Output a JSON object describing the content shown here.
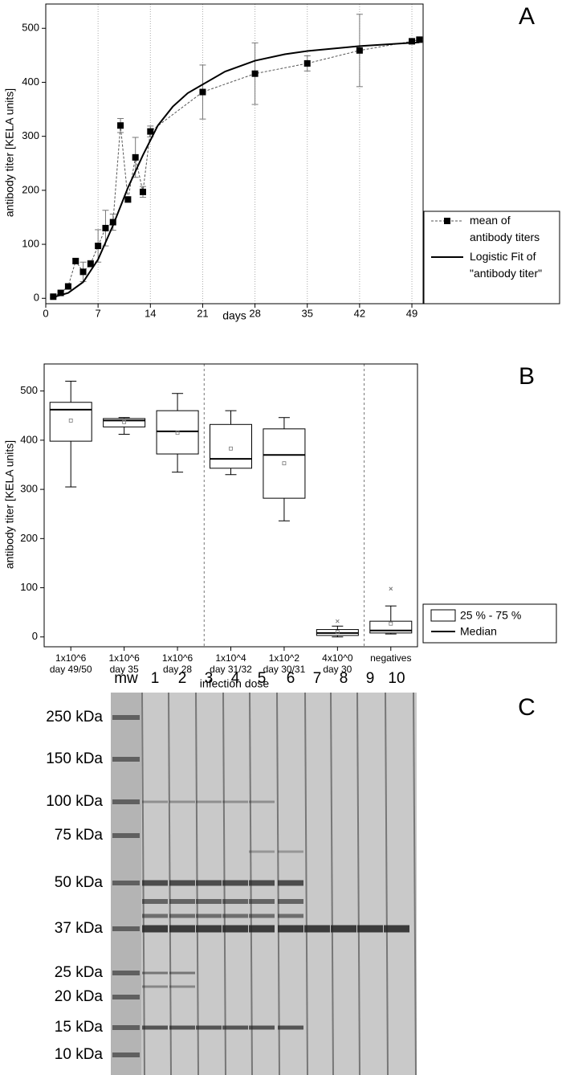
{
  "chart_data": [
    {
      "type": "line",
      "panel": "A",
      "xlabel": "days",
      "ylabel": "antibody titer [KELA units]",
      "xlim": [
        0,
        50.5
      ],
      "ylim": [
        -10,
        545
      ],
      "xticks": [
        0,
        7,
        14,
        21,
        28,
        35,
        42,
        49
      ],
      "yticks": [
        0,
        100,
        200,
        300,
        400,
        500
      ],
      "grid": "x",
      "legend": "right",
      "series": [
        {
          "name": "mean of\nantibody titers",
          "color": "#000000",
          "style": "dashed-markers",
          "x": [
            1,
            2,
            3,
            4,
            5,
            6,
            7,
            8,
            9,
            10,
            11,
            12,
            13,
            14,
            21,
            28,
            35,
            42,
            49,
            50
          ],
          "values": [
            3,
            10,
            22,
            69,
            49,
            64,
            97,
            130,
            141,
            320,
            183,
            261,
            197,
            309,
            382,
            416,
            435,
            459,
            476,
            479
          ],
          "errors": [
            2,
            3,
            4,
            4,
            18,
            6,
            30,
            33,
            15,
            13,
            5,
            37,
            10,
            10,
            50,
            57,
            14,
            67,
            5,
            3
          ]
        },
        {
          "name": "Logistic Fit of\n\"antibody titer\"",
          "color": "#000000",
          "style": "solid",
          "x": [
            1,
            3,
            5,
            7,
            9,
            11,
            13,
            15,
            17,
            19,
            21,
            24,
            28,
            32,
            35,
            42,
            50
          ],
          "values": [
            2,
            10,
            30,
            72,
            135,
            205,
            265,
            320,
            355,
            380,
            396,
            420,
            440,
            452,
            458,
            467,
            474
          ]
        }
      ]
    },
    {
      "type": "box",
      "panel": "B",
      "xlabel": "infection dose",
      "ylabel": "antibody titer [KELA units]",
      "ylim": [
        -20,
        555
      ],
      "yticks": [
        0,
        100,
        200,
        300,
        400,
        500
      ],
      "categories": [
        "1x10^6\nday 49/50",
        "1x10^6\nday 35",
        "1x10^6\nday 28",
        "1x10^4\nday 31/32",
        "1x10^2\nday 30/31",
        "4x10^0\nday 30",
        "negatives"
      ],
      "min": [
        305,
        412,
        335,
        330,
        236,
        0,
        6
      ],
      "q1": [
        398,
        427,
        372,
        343,
        282,
        3,
        8
      ],
      "median": [
        462,
        440,
        418,
        362,
        370,
        8,
        13
      ],
      "q3": [
        477,
        444,
        460,
        432,
        423,
        15,
        32
      ],
      "max": [
        520,
        446,
        495,
        460,
        446,
        22,
        63
      ],
      "mean": [
        440,
        437,
        415,
        383,
        353,
        10,
        27
      ],
      "outlier": [
        null,
        null,
        null,
        null,
        null,
        32,
        98
      ],
      "legend": {
        "position": "lower right",
        "box": "25 % - 75 %",
        "median": "Median"
      }
    }
  ],
  "gel": {
    "panel": "C",
    "lanes": [
      "mw",
      "1",
      "2",
      "3",
      "4",
      "5",
      "6",
      "7",
      "8",
      "9",
      "10"
    ],
    "markers": [
      "250 kDa",
      "150 kDa",
      "100 kDa",
      "75 kDa",
      "50 kDa",
      "37 kDa",
      "25 kDa",
      "20 kDa",
      "15 kDa",
      "10 kDa"
    ]
  }
}
